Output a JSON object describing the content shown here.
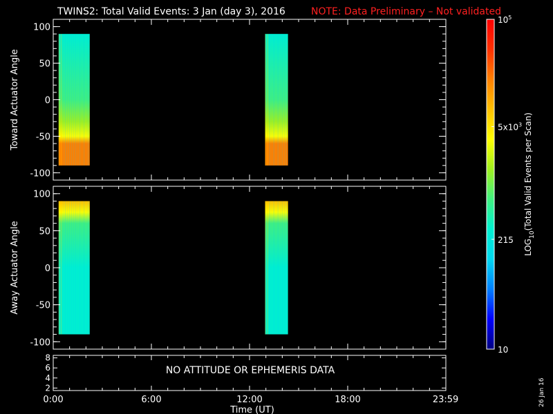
{
  "header": {
    "title": "TWINS2: Total Valid Events:  3 Jan (day   3), 2016",
    "note": "NOTE: Data Preliminary – Not validated",
    "note_color": "#ff2020"
  },
  "footer": {
    "date_stamp": "26 Jan 16",
    "no_data_message": "NO ATTITUDE OR EPHEMERIS DATA"
  },
  "chart_data": [
    {
      "type": "heatmap",
      "id": "toward",
      "ylabel": "Toward Actuator Angle",
      "ylim": [
        -110,
        110
      ],
      "yticks": [
        100,
        50,
        0,
        -50,
        -100
      ],
      "xlim_hours": [
        0,
        24
      ],
      "data_segments_hours": [
        [
          0.33,
          2.23
        ],
        [
          12.95,
          14.35
        ]
      ],
      "angle_profile": [
        {
          "angle": 90,
          "log10_events": 2.55
        },
        {
          "angle": 0,
          "log10_events": 2.7
        },
        {
          "angle": -30,
          "log10_events": 3.0
        },
        {
          "angle": -50,
          "log10_events": 3.6
        },
        {
          "angle": -60,
          "log10_events": 4.1
        },
        {
          "angle": -90,
          "log10_events": 4.35
        }
      ]
    },
    {
      "type": "heatmap",
      "id": "away",
      "ylabel": "Away Actuator Angle",
      "ylim": [
        -110,
        110
      ],
      "yticks": [
        100,
        50,
        0,
        -50,
        -100
      ],
      "xlim_hours": [
        0,
        24
      ],
      "data_segments_hours": [
        [
          0.33,
          2.23
        ],
        [
          12.95,
          14.35
        ]
      ],
      "angle_profile": [
        {
          "angle": 90,
          "log10_events": 3.9
        },
        {
          "angle": 75,
          "log10_events": 3.5
        },
        {
          "angle": 60,
          "log10_events": 2.8
        },
        {
          "angle": 0,
          "log10_events": 2.55
        },
        {
          "angle": -90,
          "log10_events": 2.6
        }
      ]
    },
    {
      "type": "line",
      "id": "attitude",
      "ylim": [
        1.5,
        8.5
      ],
      "yticks": [
        8,
        6,
        4,
        2
      ],
      "xlabel": "Time (UT)",
      "xticks": [
        {
          "hour": 0,
          "label": "0:00"
        },
        {
          "hour": 6,
          "label": "6:00"
        },
        {
          "hour": 12,
          "label": "12:00"
        },
        {
          "hour": 18,
          "label": "18:00"
        },
        {
          "hour": 23.983,
          "label": "23:59"
        }
      ]
    }
  ],
  "colorbar": {
    "label": "LOG10(Total Valid Events per Scan)",
    "label_main": "LOG",
    "label_sub": "10",
    "label_rest": "(Total Valid Events per Scan)",
    "log_range": [
      1,
      5
    ],
    "ticks": [
      {
        "log": 5,
        "label": "10",
        "sup": "5"
      },
      {
        "log": 3.699,
        "label": "5x10",
        "sup": "3"
      },
      {
        "log": 2.332,
        "label": "215",
        "sup": ""
      },
      {
        "log": 1,
        "label": "10",
        "sup": ""
      }
    ],
    "colormap": [
      "#000080",
      "#0000ff",
      "#0080ff",
      "#00d8f0",
      "#00f0d0",
      "#40f080",
      "#a0f020",
      "#ffff00",
      "#ffc000",
      "#ff8000",
      "#ff3000",
      "#ff0000"
    ]
  }
}
